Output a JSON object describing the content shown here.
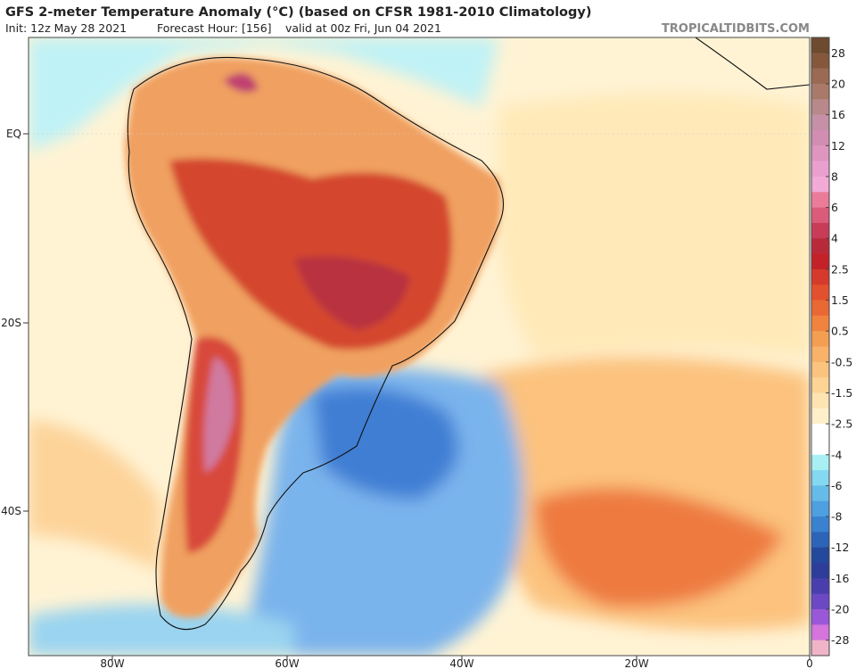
{
  "header": {
    "title": "GFS 2-meter Temperature Anomaly (°C) (based on CFSR 1981-2010 Climatology)",
    "subtitle_init": "Init: 12z May 28 2021",
    "subtitle_forecast": "Forecast Hour: [156]",
    "subtitle_valid": "valid at 00z Fri, Jun 04 2021",
    "watermark": "TROPICALTIDBITS.COM"
  },
  "map": {
    "lat_labels": [
      "EQ",
      "20S",
      "40S"
    ],
    "lon_labels": [
      "80W",
      "60W",
      "40W",
      "20W",
      "0"
    ]
  },
  "colorbar": {
    "labels": [
      "28",
      "20",
      "16",
      "12",
      "8",
      "6",
      "4",
      "2.5",
      "1.5",
      "0.5",
      "-0.5",
      "-1.5",
      "-2.5",
      "-4",
      "-6",
      "-8",
      "-12",
      "-16",
      "-20",
      "-28"
    ],
    "colors": [
      "#6e4a2e",
      "#85583c",
      "#9a6a52",
      "#a97a6a",
      "#b8888a",
      "#c690a6",
      "#d28eb2",
      "#de96c0",
      "#eaa0ce",
      "#f2aad6",
      "#ea7c9a",
      "#da5c7a",
      "#c83c58",
      "#b82a3a",
      "#c42228",
      "#d63a2c",
      "#e2502e",
      "#ea6834",
      "#f0843e",
      "#f49e52",
      "#f8b26a",
      "#fbc47e",
      "#fdd496",
      "#fee4b0",
      "#fff0ca",
      "#ffffff",
      "#ffffff",
      "#a8f0f4",
      "#84d8f0",
      "#66bce8",
      "#4ea0e0",
      "#3a82d0",
      "#2c64b8",
      "#24489c",
      "#2e3c9a",
      "#4a3eae",
      "#6c48c4",
      "#9a58d8",
      "#d474dc",
      "#f0b4c8"
    ]
  }
}
